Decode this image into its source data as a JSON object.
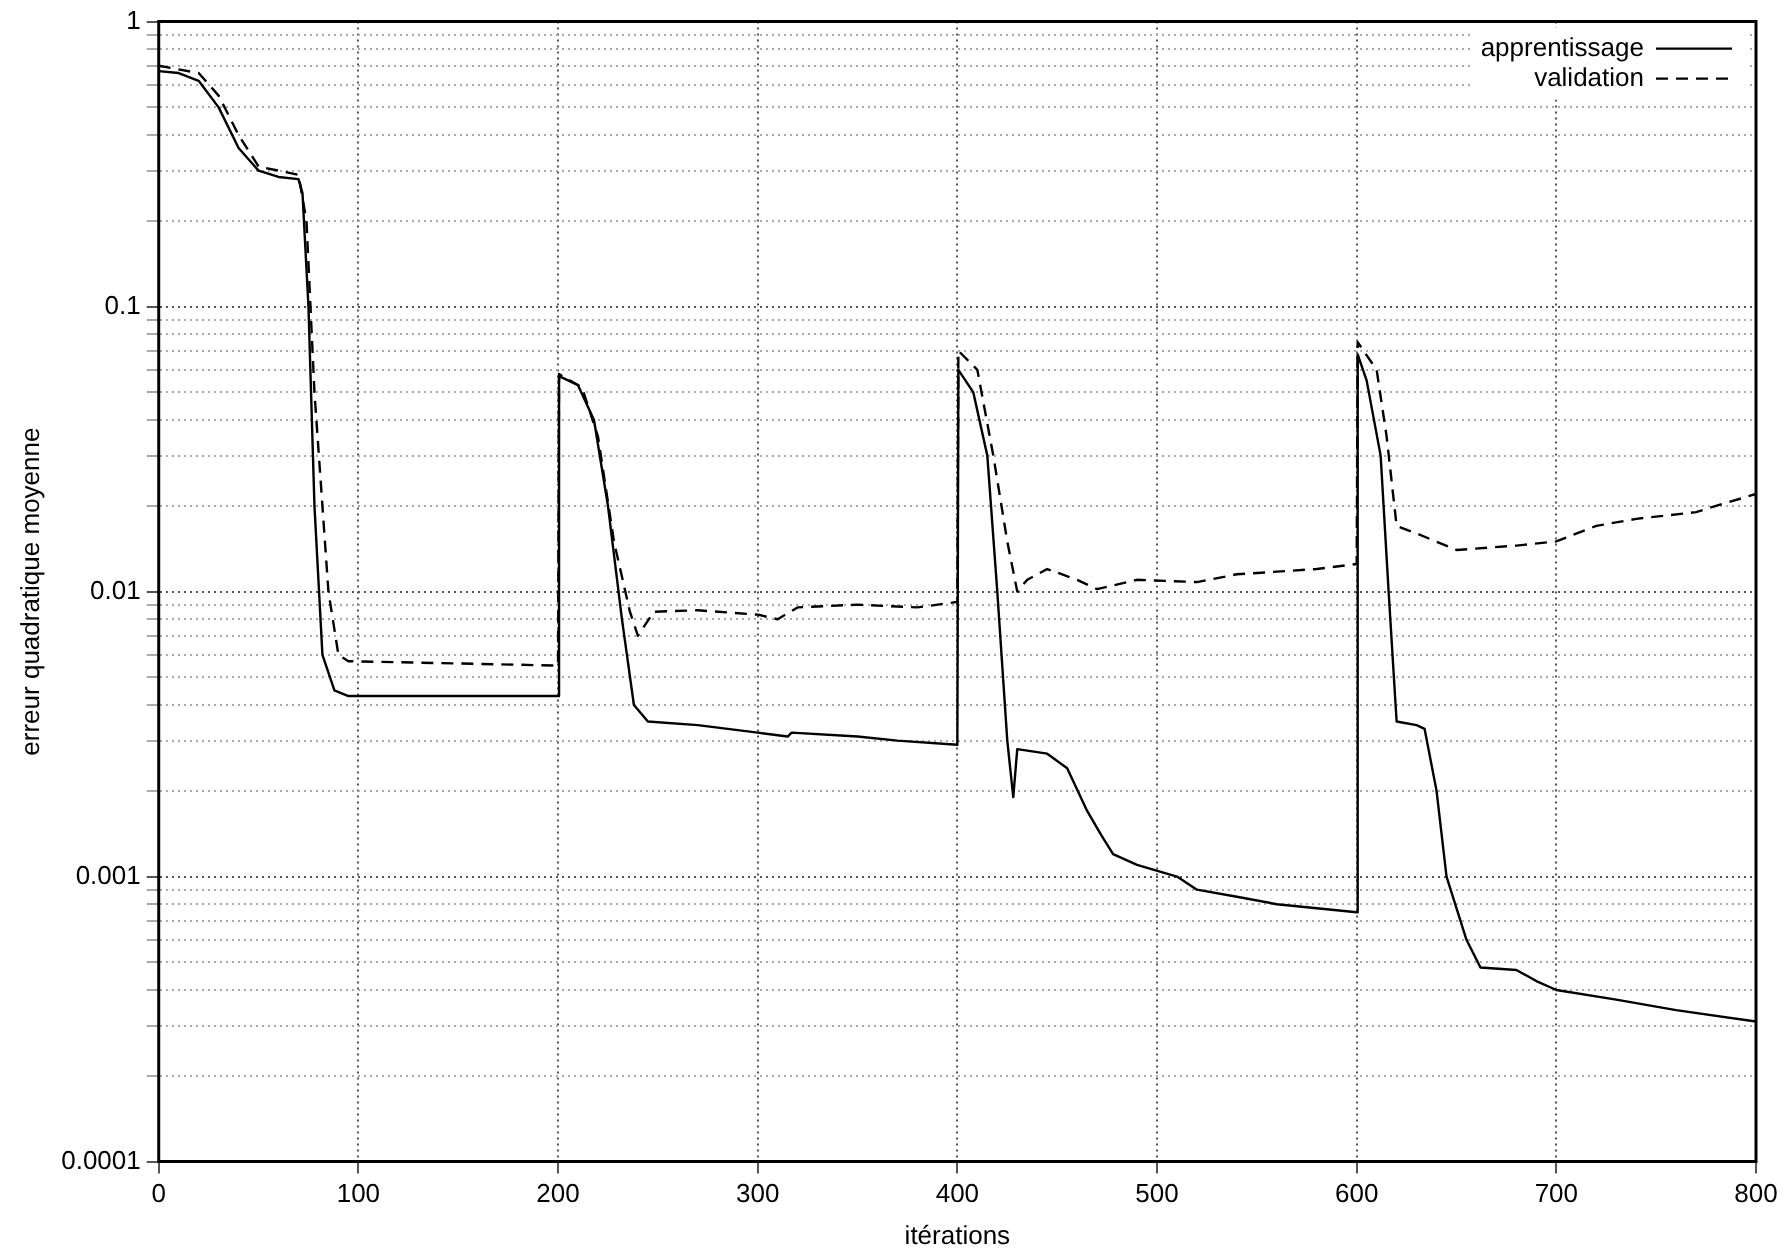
{
  "chart_data": {
    "type": "line",
    "xlabel": "itérations",
    "ylabel": "erreur quadratique moyenne",
    "log": "y",
    "grid": true,
    "legend": "top right",
    "marker": "none",
    "xlim": [
      0,
      800
    ],
    "xticks": [
      0,
      100,
      200,
      300,
      400,
      500,
      600,
      700,
      800
    ],
    "ylim": [
      0.0001,
      1
    ],
    "yticks": [
      0.0001,
      {
        "value": 0.0002,
        "label": null
      },
      {
        "value": 0.0003,
        "label": null
      },
      {
        "value": 0.0004,
        "label": null
      },
      {
        "value": 0.0005,
        "label": null
      },
      {
        "value": 0.0006,
        "label": null
      },
      {
        "value": 0.0007,
        "label": null
      },
      {
        "value": 0.0008,
        "label": null
      },
      {
        "value": 0.0009,
        "label": null
      },
      0.001,
      {
        "value": 0.002,
        "label": null
      },
      {
        "value": 0.003,
        "label": null
      },
      {
        "value": 0.004,
        "label": null
      },
      {
        "value": 0.005,
        "label": null
      },
      {
        "value": 0.006,
        "label": null
      },
      {
        "value": 0.007,
        "label": null
      },
      {
        "value": 0.008,
        "label": null
      },
      {
        "value": 0.009,
        "label": null
      },
      0.01,
      {
        "value": 0.02,
        "label": null
      },
      {
        "value": 0.03,
        "label": null
      },
      {
        "value": 0.04,
        "label": null
      },
      {
        "value": 0.05,
        "label": null
      },
      {
        "value": 0.06,
        "label": null
      },
      {
        "value": 0.07,
        "label": null
      },
      {
        "value": 0.08,
        "label": null
      },
      {
        "value": 0.09,
        "label": null
      },
      0.1,
      {
        "value": 0.2,
        "label": null
      },
      {
        "value": 0.3,
        "label": null
      },
      {
        "value": 0.4,
        "label": null
      },
      {
        "value": 0.5,
        "label": null
      },
      {
        "value": 0.6,
        "label": null
      },
      {
        "value": 0.7,
        "label": null
      },
      {
        "value": 0.8,
        "label": null
      },
      {
        "value": 0.9,
        "label": null
      },
      1
    ],
    "series": [
      {
        "name": "apprentissage",
        "color": "#000000",
        "line_style": "solid",
        "x": [
          0,
          10,
          20,
          30,
          40,
          50,
          60,
          70,
          72,
          75,
          78,
          82,
          88,
          95,
          200,
          200.5,
          210,
          218,
          225,
          232,
          238,
          245,
          270,
          300,
          315,
          317,
          350,
          370,
          400,
          400.5,
          408,
          415,
          420,
          425,
          428,
          430,
          445,
          455,
          465,
          472,
          478,
          490,
          510,
          520,
          540,
          560,
          600,
          600.5,
          605,
          612,
          616,
          620,
          630,
          634,
          640,
          645,
          655,
          662,
          680,
          690,
          700,
          730,
          760,
          800
        ],
        "values": [
          0.67,
          0.66,
          0.62,
          0.5,
          0.36,
          0.3,
          0.285,
          0.28,
          0.25,
          0.1,
          0.02,
          0.006,
          0.0045,
          0.0043,
          0.0043,
          0.057,
          0.053,
          0.04,
          0.02,
          0.008,
          0.004,
          0.0035,
          0.0034,
          0.0032,
          0.0031,
          0.0032,
          0.0031,
          0.003,
          0.0029,
          0.06,
          0.05,
          0.03,
          0.01,
          0.003,
          0.0019,
          0.0028,
          0.0027,
          0.0024,
          0.0017,
          0.0014,
          0.0012,
          0.0011,
          0.001,
          0.0009,
          0.00085,
          0.0008,
          0.00075,
          0.068,
          0.055,
          0.03,
          0.01,
          0.0035,
          0.0034,
          0.0033,
          0.002,
          0.001,
          0.0006,
          0.00048,
          0.00047,
          0.00043,
          0.0004,
          0.00037,
          0.00034,
          0.00031
        ]
      },
      {
        "name": "validation",
        "color": "#000000",
        "line_style": "dashed",
        "x": [
          0,
          20,
          30,
          40,
          50,
          60,
          70,
          74,
          78,
          85,
          90,
          95,
          200,
          200.5,
          212,
          220,
          228,
          236,
          240,
          248,
          270,
          300,
          310,
          320,
          350,
          380,
          400,
          400.5,
          410,
          418,
          425,
          430,
          435,
          445,
          460,
          470,
          490,
          520,
          540,
          580,
          600,
          600.5,
          610,
          615,
          620,
          630,
          650,
          680,
          700,
          720,
          740,
          770,
          780,
          800
        ],
        "values": [
          0.7,
          0.66,
          0.55,
          0.4,
          0.31,
          0.3,
          0.29,
          0.2,
          0.05,
          0.01,
          0.006,
          0.0057,
          0.0055,
          0.058,
          0.052,
          0.035,
          0.015,
          0.0085,
          0.007,
          0.0085,
          0.0086,
          0.0083,
          0.008,
          0.0088,
          0.009,
          0.0088,
          0.0092,
          0.07,
          0.06,
          0.03,
          0.015,
          0.01,
          0.011,
          0.012,
          0.011,
          0.0102,
          0.011,
          0.0108,
          0.0115,
          0.012,
          0.0125,
          0.075,
          0.06,
          0.035,
          0.017,
          0.016,
          0.014,
          0.0145,
          0.015,
          0.017,
          0.018,
          0.019,
          0.02,
          0.022
        ]
      }
    ]
  }
}
